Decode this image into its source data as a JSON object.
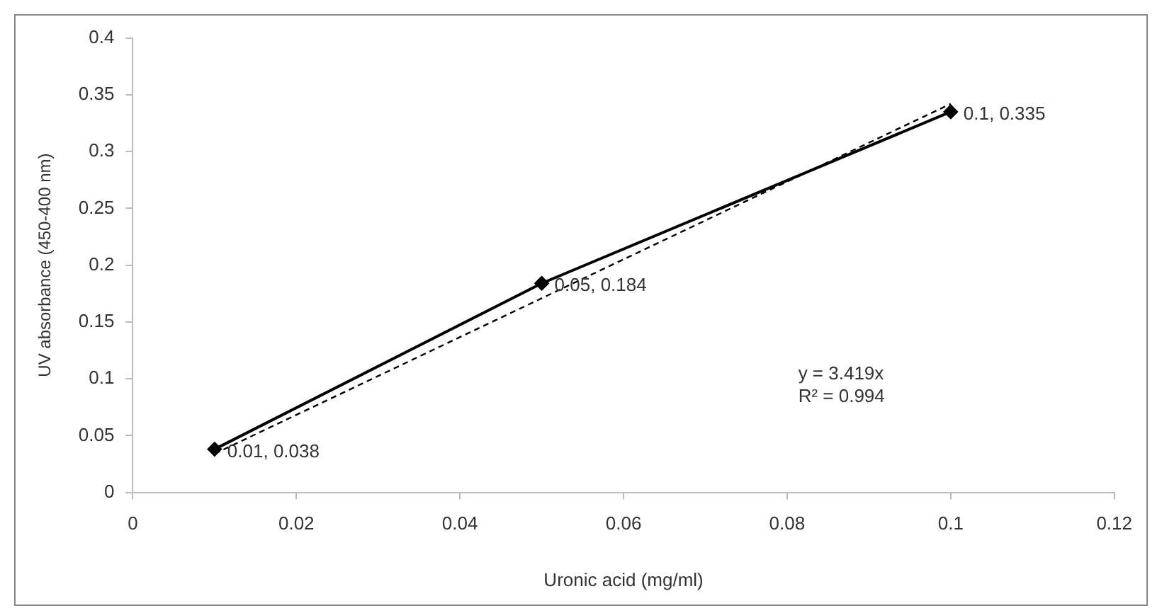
{
  "chart_data": {
    "type": "line",
    "xlabel": "Uronic acid (mg/ml)",
    "ylabel": "UV absorbance (450-400 nm)",
    "xlim": [
      0,
      0.12
    ],
    "xticks": [
      0,
      0.02,
      0.04,
      0.06,
      0.08,
      0.1,
      0.12
    ],
    "ylim": [
      0,
      0.4
    ],
    "yticks": [
      0,
      0.05,
      0.1,
      0.15,
      0.2,
      0.25,
      0.3,
      0.35,
      0.4
    ],
    "grid": false,
    "legend": false,
    "series": [
      {
        "color": "#000000",
        "x": [
          0.01,
          0.05,
          0.1
        ],
        "values": [
          0.038,
          0.184,
          0.335
        ],
        "marker": "diamond",
        "line_style": "solid",
        "value_labels": [
          "0.01, 0.038",
          "0.05, 0.184",
          "0.1, 0.335"
        ]
      },
      {
        "color": "#000000",
        "x": [
          0.01,
          0.1
        ],
        "values": [
          0.034,
          0.342
        ],
        "marker": "none",
        "line_style": "dashed"
      }
    ],
    "annotations": [
      "y = 3.419x",
      "R² = 0.994"
    ]
  }
}
